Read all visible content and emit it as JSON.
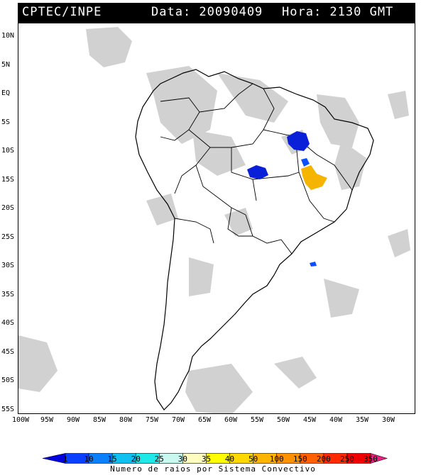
{
  "header": {
    "source": "CPTEC/INPE",
    "date_label": "Data: 20090409",
    "time_label": "Hora: 2130 GMT"
  },
  "map": {
    "lat_ticks": [
      "10N",
      "5N",
      "EQ",
      "5S",
      "10S",
      "15S",
      "20S",
      "25S",
      "30S",
      "35S",
      "40S",
      "45S",
      "50S",
      "55S"
    ],
    "lon_ticks": [
      "100W",
      "95W",
      "90W",
      "85W",
      "80W",
      "75W",
      "70W",
      "65W",
      "60W",
      "55W",
      "50W",
      "45W",
      "40W",
      "35W",
      "30W"
    ],
    "cloud_color": "#c8c8c8",
    "land_outline_color": "#000000",
    "lightning_clusters": [
      {
        "level": 1,
        "color": "#0a20d8",
        "area": "north of Tocantins"
      },
      {
        "level": 1,
        "color": "#0a20d8",
        "area": "Mato Grosso"
      },
      {
        "level": 10,
        "color": "#0a50ff",
        "area": "Tocantins / Bahia border"
      },
      {
        "level": 50,
        "color": "#f5b400",
        "area": "western Bahia"
      },
      {
        "level": 10,
        "color": "#0a50ff",
        "area": "South Atlantic"
      }
    ]
  },
  "colorbar": {
    "labels": [
      "1",
      "10",
      "15",
      "20",
      "25",
      "30",
      "35",
      "40",
      "50",
      "100",
      "150",
      "200",
      "250",
      "350"
    ],
    "colors": [
      "#0000e0",
      "#0a40ff",
      "#0a80ff",
      "#10c0f0",
      "#20e8e8",
      "#c8f8f0",
      "#fffcc0",
      "#ffff00",
      "#ffd800",
      "#ffb400",
      "#ff9000",
      "#ff6000",
      "#ff2a00",
      "#f00000",
      "#f02080"
    ],
    "caption": "Numero de raios por Sistema Convectivo"
  }
}
